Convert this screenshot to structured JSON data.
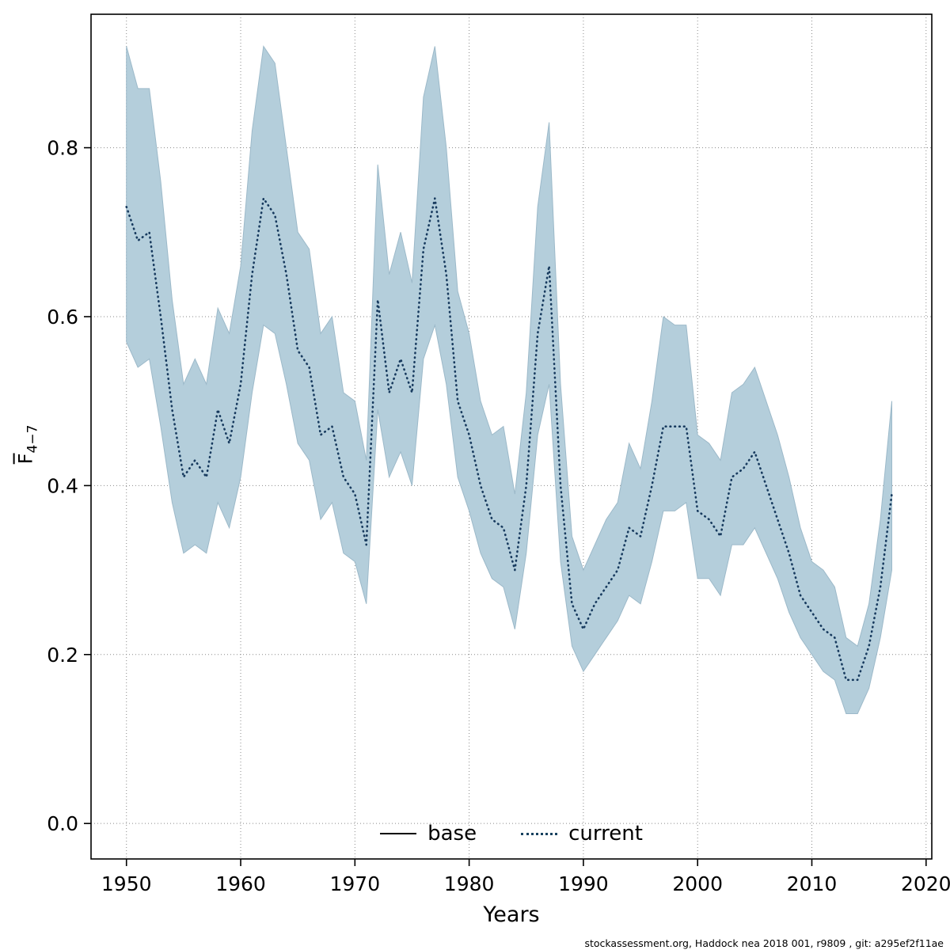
{
  "page": {
    "footer": "stockassessment.org, Haddock nea 2018 001, r9809 , git: a295ef2f11ae"
  },
  "chart_data": {
    "type": "line",
    "title": "",
    "xlabel": "Years",
    "ylabel_letter": "F",
    "ylabel_sub": "4−7",
    "xlim": [
      1946.9,
      2020.5
    ],
    "ylim": [
      -0.042,
      0.958
    ],
    "x_ticks": [
      1950,
      1960,
      1970,
      1980,
      1990,
      2000,
      2010,
      2020
    ],
    "y_ticks": [
      0.0,
      0.2,
      0.4,
      0.6,
      0.8
    ],
    "grid": true,
    "legend_position": "bottom-inside",
    "legend": [
      {
        "label": "base",
        "style": "solid",
        "color": "#000000"
      },
      {
        "label": "current",
        "style": "dotted",
        "color": "#17415f"
      }
    ],
    "band_color": "#b4cedb",
    "band_edge_color": "#9cb9c9",
    "line_color": "#173a5e",
    "years": [
      1950,
      1951,
      1952,
      1953,
      1954,
      1955,
      1956,
      1957,
      1958,
      1959,
      1960,
      1961,
      1962,
      1963,
      1964,
      1965,
      1966,
      1967,
      1968,
      1969,
      1970,
      1971,
      1972,
      1973,
      1974,
      1975,
      1976,
      1977,
      1978,
      1979,
      1980,
      1981,
      1982,
      1983,
      1984,
      1985,
      1986,
      1987,
      1988,
      1989,
      1990,
      1991,
      1992,
      1993,
      1994,
      1995,
      1996,
      1997,
      1998,
      1999,
      2000,
      2001,
      2002,
      2003,
      2004,
      2005,
      2006,
      2007,
      2008,
      2009,
      2010,
      2011,
      2012,
      2013,
      2014,
      2015,
      2016,
      2017
    ],
    "series": [
      {
        "name": "current",
        "values": [
          0.73,
          0.69,
          0.7,
          0.6,
          0.49,
          0.41,
          0.43,
          0.41,
          0.49,
          0.45,
          0.52,
          0.65,
          0.74,
          0.72,
          0.65,
          0.56,
          0.54,
          0.46,
          0.47,
          0.41,
          0.39,
          0.33,
          0.62,
          0.51,
          0.55,
          0.51,
          0.68,
          0.74,
          0.65,
          0.5,
          0.46,
          0.4,
          0.36,
          0.35,
          0.3,
          0.4,
          0.58,
          0.66,
          0.4,
          0.26,
          0.23,
          0.26,
          0.28,
          0.3,
          0.35,
          0.34,
          0.4,
          0.47,
          0.47,
          0.47,
          0.37,
          0.36,
          0.34,
          0.41,
          0.42,
          0.44,
          0.4,
          0.36,
          0.32,
          0.27,
          0.25,
          0.23,
          0.22,
          0.17,
          0.17,
          0.21,
          0.28,
          0.39
        ]
      }
    ],
    "band_lower": [
      0.57,
      0.54,
      0.55,
      0.47,
      0.38,
      0.32,
      0.33,
      0.32,
      0.38,
      0.35,
      0.41,
      0.51,
      0.59,
      0.58,
      0.52,
      0.45,
      0.43,
      0.36,
      0.38,
      0.32,
      0.31,
      0.26,
      0.49,
      0.41,
      0.44,
      0.4,
      0.55,
      0.59,
      0.52,
      0.41,
      0.37,
      0.32,
      0.29,
      0.28,
      0.23,
      0.32,
      0.46,
      0.52,
      0.31,
      0.21,
      0.18,
      0.2,
      0.22,
      0.24,
      0.27,
      0.26,
      0.31,
      0.37,
      0.37,
      0.38,
      0.29,
      0.29,
      0.27,
      0.33,
      0.33,
      0.35,
      0.32,
      0.29,
      0.25,
      0.22,
      0.2,
      0.18,
      0.17,
      0.13,
      0.13,
      0.16,
      0.22,
      0.3
    ],
    "band_upper": [
      0.92,
      0.87,
      0.87,
      0.76,
      0.62,
      0.52,
      0.55,
      0.52,
      0.61,
      0.58,
      0.66,
      0.82,
      0.92,
      0.9,
      0.8,
      0.7,
      0.68,
      0.58,
      0.6,
      0.51,
      0.5,
      0.43,
      0.78,
      0.65,
      0.7,
      0.64,
      0.86,
      0.92,
      0.8,
      0.63,
      0.58,
      0.5,
      0.46,
      0.47,
      0.39,
      0.51,
      0.73,
      0.83,
      0.52,
      0.34,
      0.3,
      0.33,
      0.36,
      0.38,
      0.45,
      0.42,
      0.5,
      0.6,
      0.59,
      0.59,
      0.46,
      0.45,
      0.43,
      0.51,
      0.52,
      0.54,
      0.5,
      0.46,
      0.41,
      0.35,
      0.31,
      0.3,
      0.28,
      0.22,
      0.21,
      0.26,
      0.36,
      0.5
    ]
  }
}
